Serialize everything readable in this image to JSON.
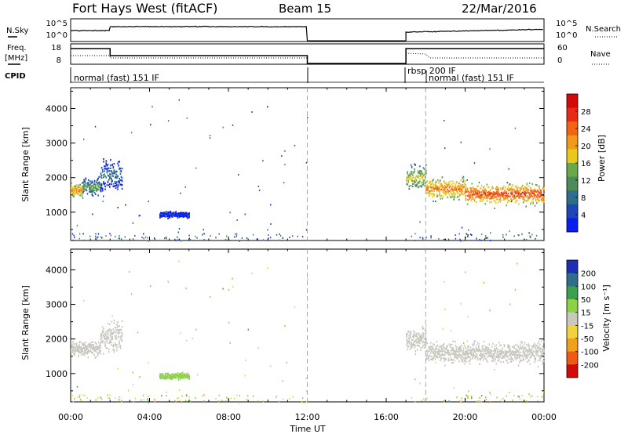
{
  "header": {
    "station": "Fort Hays West (fitACF)",
    "beam": "Beam 15",
    "date": "22/Mar/2016"
  },
  "meta_panels": {
    "nsky_label": "N.Sky",
    "nsky_ticks": [
      "10^5",
      "10^0"
    ],
    "nsearch_label": "N.Search",
    "nsearch_ticks": [
      "10^5",
      "10^0"
    ],
    "freq_label": "Freq.",
    "freq_unit": "[MHz]",
    "freq_ticks": [
      "18",
      "8"
    ],
    "nave_label": "Nave",
    "nave_ticks": [
      "60",
      "0"
    ],
    "cpid_label": "CPID",
    "cpid_entries": [
      "normal (fast) 151 IF",
      "rbsp 200 IF",
      "normal (fast) 151 IF"
    ]
  },
  "colors": {
    "grey_scatter": "#c8c8c0",
    "power_scale": [
      "#0a1ef0",
      "#1e46b4",
      "#2e6e8a",
      "#4c8c5a",
      "#6aa84a",
      "#e8c81c",
      "#f09a1a",
      "#f06414",
      "#e82a14",
      "#d20a0a"
    ],
    "velocity_scale": [
      "#d20a0a",
      "#f05a14",
      "#f0a01e",
      "#f0d23c",
      "#c8c8c0",
      "#8cd246",
      "#3ca050",
      "#2e6e8a",
      "#1e2eb4"
    ]
  },
  "chart_data": [
    {
      "type": "heatmap",
      "title": "",
      "xlabel": "",
      "ylabel": "Slant Range [km]",
      "xlim": [
        0,
        24
      ],
      "ylim": [
        180,
        4600
      ],
      "yticks": [
        "1000",
        "2000",
        "3000",
        "4000"
      ],
      "colorbar": {
        "label": "Power [dB]",
        "ticks": [
          "4",
          "8",
          "12",
          "16",
          "20",
          "24",
          "28"
        ],
        "range": [
          0,
          32
        ]
      },
      "data_gap": [
        12.0,
        17.0
      ],
      "echo_bands": [
        {
          "start": 0.0,
          "end": 0.6,
          "center": 1650,
          "width": 280,
          "value": 22
        },
        {
          "start": 0.6,
          "end": 1.5,
          "center": 1750,
          "width": 320,
          "value": 14
        },
        {
          "start": 1.5,
          "end": 2.6,
          "center": 2100,
          "width": 600,
          "value": 9
        },
        {
          "start": 4.5,
          "end": 6.0,
          "center": 950,
          "width": 120,
          "value": 5
        },
        {
          "start": 17.0,
          "end": 18.0,
          "center": 2000,
          "width": 500,
          "value": 18
        },
        {
          "start": 18.0,
          "end": 20.0,
          "center": 1700,
          "width": 420,
          "value": 23
        },
        {
          "start": 20.0,
          "end": 24.0,
          "center": 1550,
          "width": 380,
          "value": 26
        }
      ]
    },
    {
      "type": "heatmap",
      "title": "",
      "xlabel": "Time UT",
      "ylabel": "Slant Range [km]",
      "xlim": [
        0,
        24
      ],
      "ylim": [
        180,
        4600
      ],
      "xticks": [
        "00:00",
        "04:00",
        "08:00",
        "12:00",
        "16:00",
        "20:00",
        "00:00"
      ],
      "yticks": [
        "1000",
        "2000",
        "3000",
        "4000"
      ],
      "colorbar": {
        "label": "Velocity [m s⁻¹]",
        "ticks": [
          "-200",
          "-100",
          "-50",
          "-15",
          "15",
          "50",
          "100",
          "200"
        ],
        "range": [
          -250,
          250
        ]
      },
      "data_gap": [
        12.0,
        17.0
      ],
      "echo_bands": [
        {
          "start": 0.0,
          "end": 1.5,
          "center": 1750,
          "width": 320,
          "value": 0
        },
        {
          "start": 1.5,
          "end": 2.6,
          "center": 2100,
          "width": 600,
          "value": 0
        },
        {
          "start": 4.5,
          "end": 6.0,
          "center": 950,
          "width": 120,
          "value": 20
        },
        {
          "start": 17.0,
          "end": 18.0,
          "center": 2000,
          "width": 500,
          "value": 0
        },
        {
          "start": 18.0,
          "end": 24.0,
          "center": 1620,
          "width": 420,
          "value": 0
        }
      ]
    }
  ]
}
